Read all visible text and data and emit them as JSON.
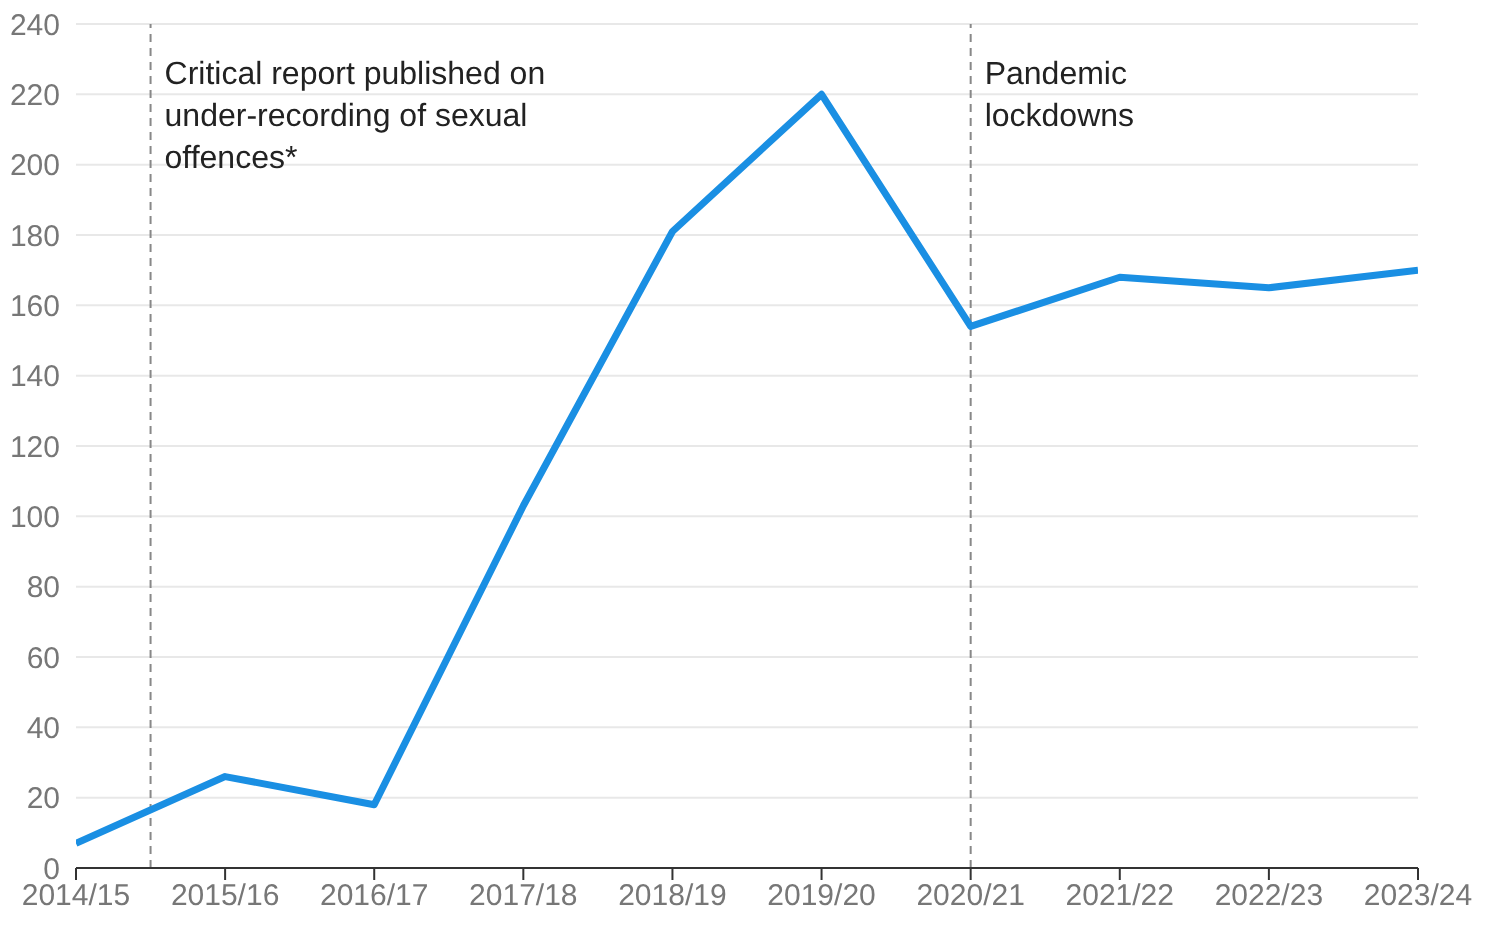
{
  "chart_data": {
    "type": "line",
    "categories": [
      "2014/15",
      "2015/16",
      "2016/17",
      "2017/18",
      "2018/19",
      "2019/20",
      "2020/21",
      "2021/22",
      "2022/23",
      "2023/24"
    ],
    "series": [
      {
        "color": "#1a8fe3",
        "values": [
          7,
          26,
          18,
          103,
          181,
          220,
          154,
          168,
          165,
          170
        ]
      }
    ],
    "ylim": [
      0,
      240
    ],
    "yticks": [
      0,
      20,
      40,
      60,
      80,
      100,
      120,
      140,
      160,
      180,
      200,
      220,
      240
    ],
    "grid": "y",
    "marker": "none",
    "line_style": "solid",
    "annotations": [
      "Critical report published on under-recording of sexual offences*"
    ],
    "ref_lines": [
      {
        "axis": "x",
        "value": "2020/21",
        "label": "Pandemic lockdowns",
        "color": "#888888",
        "line_style": "dashed"
      }
    ]
  }
}
